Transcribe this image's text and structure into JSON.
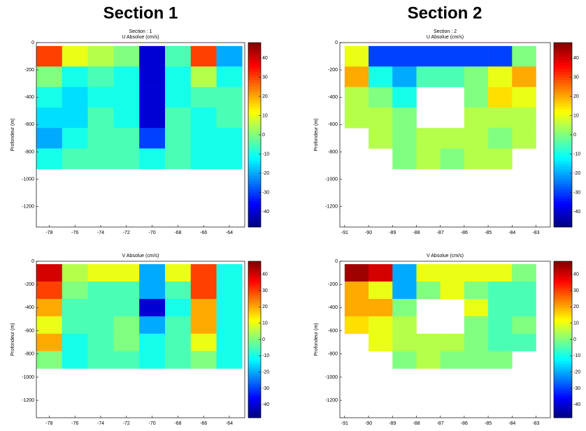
{
  "headings": [
    "Section 1",
    "Section 2"
  ],
  "chart_data": [
    {
      "type": "heatmap",
      "title": "Section : 1",
      "subtitle": "U Absolue (cm/s)",
      "ylabel": "Profondeur (m)",
      "x": [
        -78,
        -76,
        -74,
        -72,
        -70,
        -68,
        -66,
        -64
      ],
      "y": [
        -100,
        -250,
        -400,
        -550,
        -700,
        -850
      ],
      "z": [
        [
          30,
          10,
          5,
          0,
          -40,
          -5,
          30,
          -20
        ],
        [
          0,
          -10,
          -5,
          -10,
          -40,
          -10,
          5,
          -10
        ],
        [
          -10,
          -15,
          -10,
          -10,
          -40,
          -10,
          -5,
          -5
        ],
        [
          -15,
          -15,
          -5,
          -10,
          -40,
          -5,
          -10,
          -5
        ],
        [
          -20,
          -10,
          -5,
          -5,
          -30,
          -5,
          -10,
          -10
        ],
        [
          -10,
          -5,
          -5,
          -5,
          -10,
          -5,
          -10,
          -10
        ]
      ],
      "xlim": [
        -79,
        -62.8
      ],
      "xticks": [
        -78,
        -76,
        -74,
        -72,
        -70,
        -68,
        -66,
        -64
      ],
      "ylim": [
        -1350,
        0
      ],
      "yticks": [
        -1200,
        -1000,
        -800,
        -600,
        -400,
        -200,
        0
      ],
      "clim": [
        -48,
        48
      ],
      "cticks": [
        -40,
        -30,
        -20,
        -10,
        0,
        10,
        20,
        30,
        40
      ],
      "colormap": "jet"
    },
    {
      "type": "heatmap",
      "title": "Section : 2",
      "subtitle": "U Absolue (cm/s)",
      "ylabel": "Profondeur (m)",
      "x": [
        -90.5,
        -89.5,
        -88.5,
        -87.5,
        -86.5,
        -85.5,
        -84.5,
        -83.5
      ],
      "y": [
        -100,
        -250,
        -400,
        -550,
        -700,
        -850
      ],
      "z": [
        [
          10,
          -30,
          -30,
          -30,
          -30,
          -30,
          -30,
          0
        ],
        [
          20,
          -10,
          -20,
          -5,
          -5,
          0,
          10,
          20
        ],
        [
          5,
          0,
          -10,
          null,
          null,
          0,
          15,
          10
        ],
        [
          5,
          5,
          0,
          null,
          null,
          5,
          5,
          5
        ],
        [
          null,
          5,
          0,
          5,
          5,
          5,
          0,
          5
        ],
        [
          null,
          null,
          0,
          5,
          0,
          5,
          5,
          null
        ]
      ],
      "xlim": [
        -91.2,
        -82.4
      ],
      "xticks": [
        -91,
        -90,
        -89,
        -88,
        -87,
        -86,
        -85,
        -84,
        -83
      ],
      "ylim": [
        -1350,
        0
      ],
      "yticks": [
        -1200,
        -1000,
        -800,
        -600,
        -400,
        -200,
        0
      ],
      "clim": [
        -48,
        48
      ],
      "cticks": [
        -40,
        -30,
        -20,
        -10,
        0,
        10,
        20,
        30,
        40
      ],
      "colormap": "jet"
    },
    {
      "type": "heatmap",
      "title": "V Absolue (cm/s)",
      "ylabel": "Profondeur (m)",
      "x": [
        -78,
        -76,
        -74,
        -72,
        -70,
        -68,
        -66,
        -64
      ],
      "y": [
        -100,
        -250,
        -400,
        -550,
        -700,
        -850
      ],
      "z": [
        [
          40,
          5,
          10,
          10,
          -20,
          10,
          30,
          -10
        ],
        [
          30,
          0,
          -5,
          -5,
          -20,
          -5,
          30,
          -10
        ],
        [
          20,
          -5,
          -5,
          -5,
          -40,
          -10,
          20,
          -10
        ],
        [
          10,
          -5,
          -5,
          0,
          -20,
          -5,
          20,
          -10
        ],
        [
          20,
          -10,
          -5,
          0,
          -10,
          -5,
          10,
          -10
        ],
        [
          0,
          -10,
          -5,
          -5,
          -10,
          -5,
          0,
          -10
        ]
      ],
      "xlim": [
        -79,
        -62.8
      ],
      "xticks": [
        -78,
        -76,
        -74,
        -72,
        -70,
        -68,
        -66,
        -64
      ],
      "ylim": [
        -1350,
        0
      ],
      "yticks": [
        -1200,
        -1000,
        -800,
        -600,
        -400,
        -200,
        0
      ],
      "clim": [
        -48,
        48
      ],
      "cticks": [
        -40,
        -30,
        -20,
        -10,
        0,
        10,
        20,
        30,
        40
      ],
      "colormap": "jet"
    },
    {
      "type": "heatmap",
      "title": "V Absolue (cm/s)",
      "ylabel": "Profondeur (m)",
      "x": [
        -90.5,
        -89.5,
        -88.5,
        -87.5,
        -86.5,
        -85.5,
        -84.5,
        -83.5
      ],
      "y": [
        -100,
        -250,
        -400,
        -550,
        -700,
        -850
      ],
      "z": [
        [
          45,
          40,
          -20,
          10,
          10,
          10,
          10,
          0
        ],
        [
          20,
          10,
          -20,
          0,
          10,
          0,
          -5,
          -5
        ],
        [
          20,
          20,
          0,
          null,
          null,
          10,
          -5,
          -5
        ],
        [
          15,
          10,
          5,
          null,
          null,
          0,
          -5,
          0
        ],
        [
          null,
          10,
          5,
          5,
          5,
          0,
          -5,
          -5
        ],
        [
          null,
          null,
          0,
          5,
          0,
          0,
          0,
          null
        ]
      ],
      "xlim": [
        -91.2,
        -82.4
      ],
      "xticks": [
        -91,
        -90,
        -89,
        -88,
        -87,
        -86,
        -85,
        -84,
        -83
      ],
      "ylim": [
        -1350,
        0
      ],
      "yticks": [
        -1200,
        -1000,
        -800,
        -600,
        -400,
        -200,
        0
      ],
      "clim": [
        -48,
        48
      ],
      "cticks": [
        -40,
        -30,
        -20,
        -10,
        0,
        10,
        20,
        30,
        40
      ],
      "colormap": "jet"
    }
  ]
}
